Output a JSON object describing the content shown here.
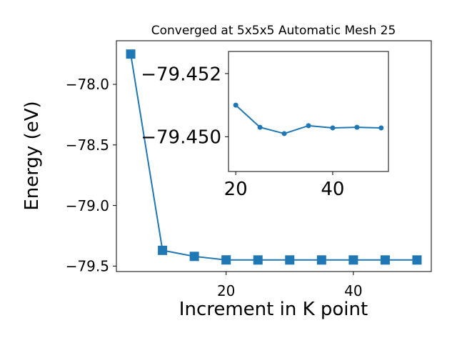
{
  "chart_data": [
    {
      "type": "line",
      "title": "Converged at 5x5x5 Automatic Mesh 25",
      "xlabel": "Increment in K point",
      "ylabel": "Energy (eV)",
      "xlim": [
        2.75,
        52.25
      ],
      "ylim": [
        -79.545,
        -77.64
      ],
      "x_ticks": [
        20,
        40
      ],
      "x_tick_labels": [
        "20",
        "40"
      ],
      "y_ticks": [
        -78.0,
        -78.5,
        -79.0,
        -79.5
      ],
      "y_tick_labels": [
        "−78.0",
        "−78.5",
        "−79.0",
        "−79.5"
      ],
      "grid": false,
      "series": [
        {
          "marker": "square",
          "x": [
            5,
            10,
            15,
            20,
            25,
            30,
            35,
            40,
            45,
            50
          ],
          "y": [
            -77.75,
            -79.37,
            -79.42,
            -79.449,
            -79.4495,
            -79.4495,
            -79.4495,
            -79.4495,
            -79.4495,
            -79.4495
          ]
        }
      ]
    },
    {
      "type": "line",
      "title": "",
      "xlabel": "",
      "ylabel": "",
      "xlim": [
        18.5,
        51.5
      ],
      "ylim": [
        -79.4489,
        -79.4527
      ],
      "x_ticks": [
        20,
        40
      ],
      "x_tick_labels": [
        "20",
        "40"
      ],
      "y_ticks": [
        -79.452,
        -79.45
      ],
      "y_tick_labels": [
        "−79.452",
        "−79.450"
      ],
      "grid": false,
      "series": [
        {
          "marker": "circle",
          "x": [
            20,
            25,
            30,
            35,
            40,
            45,
            50
          ],
          "y": [
            -79.451,
            -79.4503,
            -79.4501,
            -79.45035,
            -79.45028,
            -79.4503,
            -79.45028
          ]
        }
      ]
    }
  ],
  "colors": {
    "series": "#1f77b4",
    "axes": "#000000",
    "background": "#ffffff"
  }
}
